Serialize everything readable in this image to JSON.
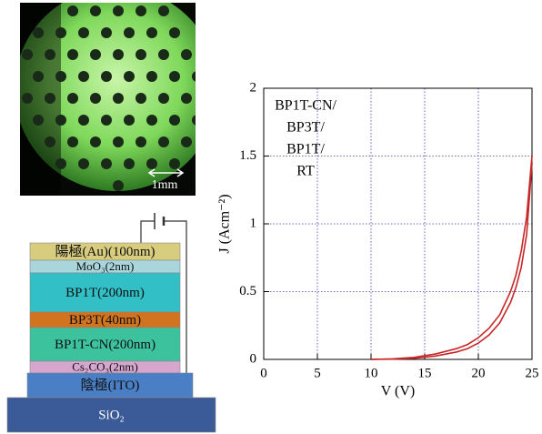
{
  "photo": {
    "scale_label": "1mm"
  },
  "device_stack": {
    "layers": [
      "陽極(Au)(100nm)",
      "MoO₃(2nm)",
      "BP1T(200nm)",
      "BP3T(40nm)",
      "BP1T-CN(200nm)",
      "Cs₂CO₃(2nm)",
      "陰極(ITO)",
      "SiO₂"
    ]
  },
  "chart_data": {
    "type": "line",
    "xlabel": "V (V)",
    "ylabel": "J (Acm⁻²)",
    "annotation": [
      "BP1T-CN/",
      "BP3T/",
      "BP1T/",
      "RT"
    ],
    "x": [
      10,
      12,
      14,
      16,
      18,
      19,
      20,
      21,
      22,
      23,
      23.5,
      24,
      24.5,
      25
    ],
    "series": [
      {
        "color": "#c62828",
        "values": [
          0,
          0.004,
          0.015,
          0.04,
          0.08,
          0.11,
          0.16,
          0.23,
          0.33,
          0.5,
          0.62,
          0.8,
          1.05,
          1.5
        ]
      },
      {
        "color": "#c62828",
        "values": [
          0,
          0.002,
          0.008,
          0.025,
          0.055,
          0.08,
          0.12,
          0.18,
          0.27,
          0.42,
          0.53,
          0.68,
          0.92,
          1.45
        ]
      }
    ],
    "xlim": [
      0,
      25
    ],
    "xticks": [
      0,
      5,
      10,
      15,
      20,
      25
    ],
    "ylim": [
      0,
      2
    ],
    "yticks": [
      0,
      0.5,
      1,
      1.5,
      2
    ],
    "grid": true
  }
}
